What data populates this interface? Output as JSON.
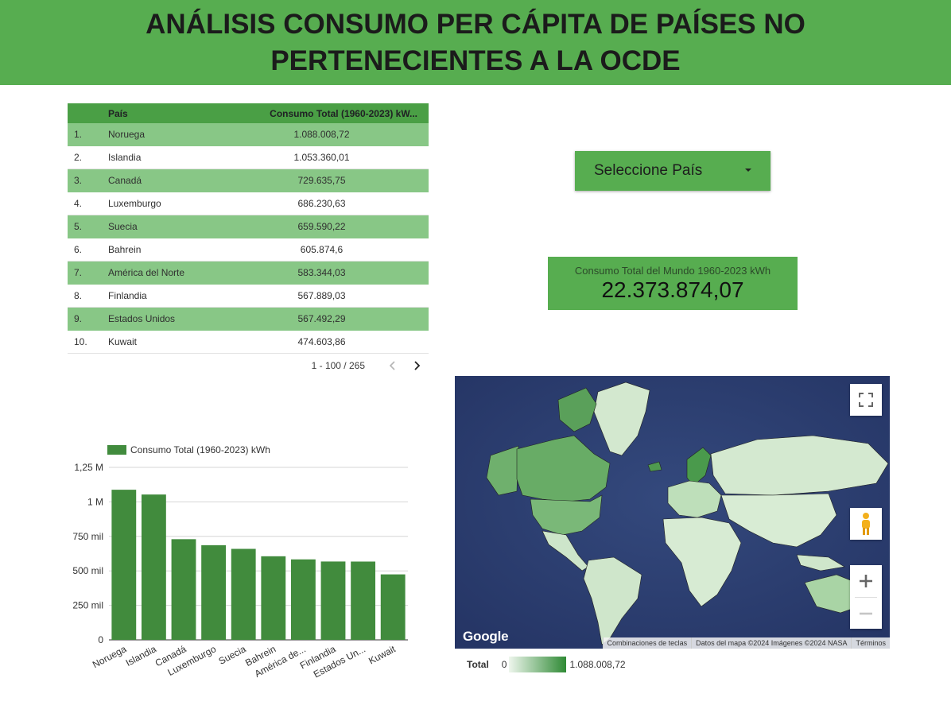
{
  "header": {
    "title": "ANÁLISIS CONSUMO PER CÁPITA DE PAÍSES NO PERTENECIENTES A LA OCDE"
  },
  "table": {
    "columns": [
      "",
      "País",
      "Consumo Total (1960-2023) kW..."
    ],
    "rows": [
      {
        "idx": "1.",
        "country": "Noruega",
        "value": "1.088.008,72"
      },
      {
        "idx": "2.",
        "country": "Islandia",
        "value": "1.053.360,01"
      },
      {
        "idx": "3.",
        "country": "Canadá",
        "value": "729.635,75"
      },
      {
        "idx": "4.",
        "country": "Luxemburgo",
        "value": "686.230,63"
      },
      {
        "idx": "5.",
        "country": "Suecia",
        "value": "659.590,22"
      },
      {
        "idx": "6.",
        "country": "Bahrein",
        "value": "605.874,6"
      },
      {
        "idx": "7.",
        "country": "América del Norte",
        "value": "583.344,03"
      },
      {
        "idx": "8.",
        "country": "Finlandia",
        "value": "567.889,03"
      },
      {
        "idx": "9.",
        "country": "Estados Unidos",
        "value": "567.492,29"
      },
      {
        "idx": "10.",
        "country": "Kuwait",
        "value": "474.603,86"
      }
    ],
    "pagination": "1 - 100 / 265"
  },
  "dropdown": {
    "label": "Seleccione País"
  },
  "scorecard": {
    "label": "Consumo Total del Mundo 1960-2023 kWh",
    "value": "22.373.874,07"
  },
  "chart_data": {
    "type": "bar",
    "title": "",
    "xlabel": "",
    "ylabel": "",
    "legend": {
      "label": "Consumo Total (1960-2023) kWh",
      "position": "top-left"
    },
    "categories": [
      "Noruega",
      "Islandia",
      "Canadá",
      "Luxemburgo",
      "Suecia",
      "Bahrein",
      "América de...",
      "Finlandia",
      "Estados Un...",
      "Kuwait"
    ],
    "values": [
      1088008.72,
      1053360.01,
      729635.75,
      686230.63,
      659590.22,
      605874.6,
      583344.03,
      567889.03,
      567492.29,
      474603.86
    ],
    "ylim": [
      0,
      1250000
    ],
    "yticks": [
      0,
      250000,
      500000,
      750000,
      1000000,
      1250000
    ],
    "ytick_labels": [
      "0",
      "250 mil",
      "500 mil",
      "750 mil",
      "1 M",
      "1,25 M"
    ],
    "grid": true,
    "bar_color": "#418b3d"
  },
  "map": {
    "attribution": [
      "Combinaciones de teclas",
      "Datos del mapa ©2024 Imágenes ©2024 NASA",
      "Términos"
    ],
    "logo": "Google",
    "legend": {
      "title": "Total",
      "min": "0",
      "max": "1.088.008,72"
    },
    "colors": {
      "ocean": "#2e3f72",
      "land_low": "#cfe6cb",
      "land_high": "#4a9a4c"
    }
  },
  "colors": {
    "header_bg": "#57ad50",
    "accent": "#57ad50",
    "table_header": "#4a9f45",
    "row_alt": "#88c786"
  }
}
